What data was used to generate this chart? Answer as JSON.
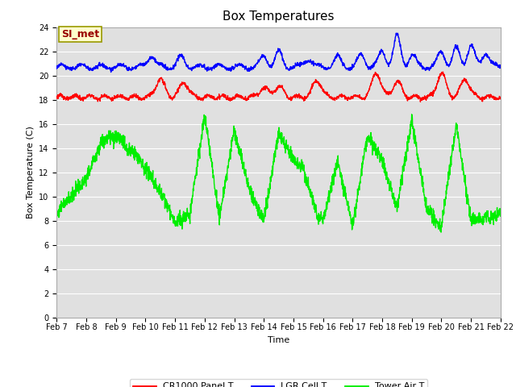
{
  "title": "Box Temperatures",
  "xlabel": "Time",
  "ylabel": "Box Temperature (C)",
  "ylim": [
    0,
    24
  ],
  "yticks": [
    0,
    2,
    4,
    6,
    8,
    10,
    12,
    14,
    16,
    18,
    20,
    22,
    24
  ],
  "x_labels": [
    "Feb 7",
    "Feb 8",
    "Feb 9",
    "Feb 10",
    "Feb 11",
    "Feb 12",
    "Feb 13",
    "Feb 14",
    "Feb 15",
    "Feb 16",
    "Feb 17",
    "Feb 18",
    "Feb 19",
    "Feb 20",
    "Feb 21",
    "Feb 22"
  ],
  "bg_color": "#e0e0e0",
  "plot_bg_color": "#e0e0e0",
  "grid_color": "#ffffff",
  "fig_bg_color": "#ffffff",
  "legend_labels": [
    "CR1000 Panel T",
    "LGR Cell T",
    "Tower Air T"
  ],
  "legend_colors": [
    "#ff0000",
    "#0000ff",
    "#00ee00"
  ],
  "annotation_text": "SI_met",
  "annotation_bg": "#ffffcc",
  "annotation_border": "#999900",
  "annotation_text_color": "#990000",
  "line_width": 1.0,
  "title_fontsize": 11,
  "axis_fontsize": 8,
  "tick_fontsize": 7
}
